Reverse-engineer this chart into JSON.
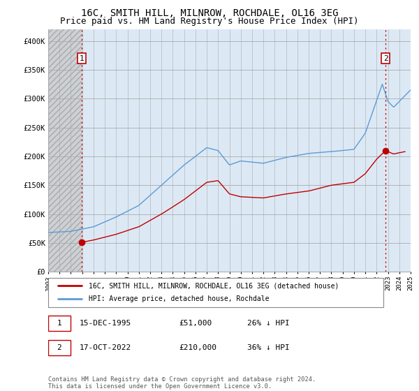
{
  "title": "16C, SMITH HILL, MILNROW, ROCHDALE, OL16 3EG",
  "subtitle": "Price paid vs. HM Land Registry's House Price Index (HPI)",
  "hpi_label": "HPI: Average price, detached house, Rochdale",
  "property_label": "16C, SMITH HILL, MILNROW, ROCHDALE, OL16 3EG (detached house)",
  "annotation1_date": "15-DEC-1995",
  "annotation1_price": "£51,000",
  "annotation1_hpi": "26% ↓ HPI",
  "annotation2_date": "17-OCT-2022",
  "annotation2_price": "£210,000",
  "annotation2_hpi": "36% ↓ HPI",
  "footer": "Contains HM Land Registry data © Crown copyright and database right 2024.\nThis data is licensed under the Open Government Licence v3.0.",
  "hpi_color": "#5b9bd5",
  "property_color": "#c00000",
  "dot_color": "#c00000",
  "annotation_box_color": "#c00000",
  "plot_bg_color": "#dce9f5",
  "hatch_bg_color": "#d0d0d0",
  "ylim_max": 420000,
  "yticks": [
    0,
    50000,
    100000,
    150000,
    200000,
    250000,
    300000,
    350000,
    400000
  ],
  "ytick_labels": [
    "£0",
    "£50K",
    "£100K",
    "£150K",
    "£200K",
    "£250K",
    "£300K",
    "£350K",
    "£400K"
  ],
  "background_color": "#ffffff",
  "grid_color": "#aaaaaa",
  "sale1_year": 1995.96,
  "sale1_value": 51000,
  "sale2_year": 2022.79,
  "sale2_value": 210000,
  "xmin": 1993.0,
  "xmax": 2025.0,
  "hatch_xmax": 1995.96,
  "title_fontsize": 10,
  "subtitle_fontsize": 9
}
